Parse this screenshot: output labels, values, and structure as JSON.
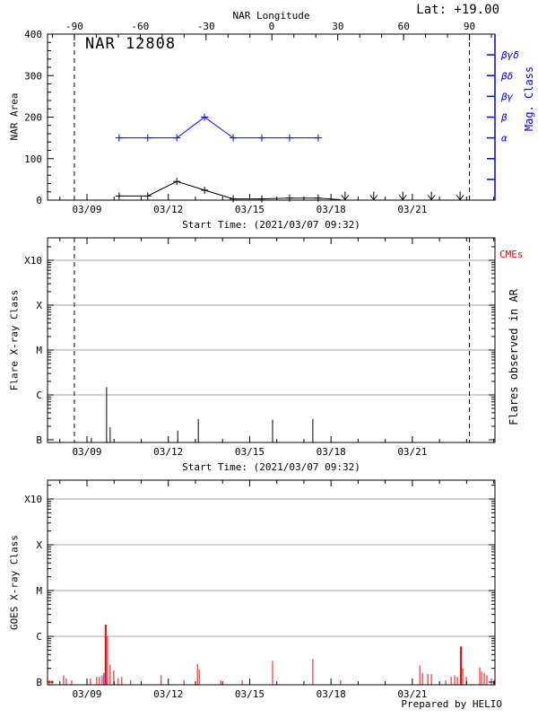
{
  "figure": {
    "title": "NAR 12808",
    "latitude": "Lat: +19.00",
    "prepared_by": "Prepared by HELIO",
    "colors": {
      "background": "#ffffff",
      "axis_black": "#000000",
      "accent_blue": "#0000ff",
      "accent_red": "#ff0000",
      "grid_gray": "#a6a6a6"
    }
  },
  "chart_data": [
    {
      "id": "nar-area",
      "type": "line",
      "title": "NAR 12808",
      "ylabel": "NAR Area",
      "ylim": [
        0,
        400
      ],
      "y_ticks": [
        "0",
        "100",
        "200",
        "300",
        "400"
      ],
      "top_axis": {
        "title": "NAR Longitude",
        "tick_labels": [
          "-90",
          "-60",
          "-30",
          "0",
          "30",
          "60",
          "90"
        ]
      },
      "x_tick_labels": [
        "03/09",
        "03/12",
        "03/15",
        "03/18",
        "03/21"
      ],
      "x_note": "Start Time: (2021/03/07 09:32)",
      "right_axis": {
        "title": "Mag. Class",
        "labels": [
          "α",
          "β",
          "βγ",
          "βδ",
          "βγδ"
        ],
        "values": [
          150,
          200,
          250,
          300,
          350
        ],
        "extra_ticks": [
          50,
          100
        ]
      },
      "dashed_x": [
        0.06,
        0.943
      ],
      "series": [
        {
          "name": "NAR Area",
          "color": "#000000",
          "marker": "plus",
          "dates": [
            "03/10",
            "03/11",
            "03/12",
            "03/13",
            "03/14",
            "03/15",
            "03/16",
            "03/17"
          ],
          "x": [
            0.16,
            0.224,
            0.289,
            0.351,
            0.415,
            0.479,
            0.541,
            0.605
          ],
          "y": [
            10,
            10,
            45,
            24,
            3,
            3,
            5,
            5
          ],
          "tail_x": 0.655
        },
        {
          "name": "Magnetic Class",
          "color": "#0000ff",
          "marker": "plus",
          "dates": [
            "03/10",
            "03/11",
            "03/12",
            "03/13",
            "03/14",
            "03/15",
            "03/16",
            "03/17"
          ],
          "x": [
            0.16,
            0.224,
            0.289,
            0.351,
            0.415,
            0.479,
            0.541,
            0.605
          ],
          "y": [
            150,
            150,
            150,
            200,
            150,
            150,
            150,
            150
          ],
          "classes": [
            "α",
            "α",
            "α",
            "β",
            "α",
            "α",
            "α",
            "α"
          ]
        }
      ],
      "limit_arrows": {
        "symbol": "down-arrow",
        "dates": [
          "03/18",
          "03/19",
          "03/20",
          "03/21",
          "03/22"
        ],
        "x": [
          0.665,
          0.729,
          0.794,
          0.858,
          0.922
        ],
        "y": 0
      }
    },
    {
      "id": "flares-in-ar",
      "type": "spikes",
      "ylabel": "Flare X-ray Class",
      "right_title": "Flares observed in AR",
      "corner_label": "CMEs",
      "y_tick_labels": [
        "B",
        "C",
        "M",
        "X",
        "X10"
      ],
      "x_tick_labels": [
        "03/09",
        "03/12",
        "03/15",
        "03/18",
        "03/21"
      ],
      "x_note": "Start Time: (2021/03/07 09:32)",
      "dashed_x": [
        0.06,
        0.943
      ],
      "color": "#000000",
      "events": [
        {
          "x": 0.098,
          "class": "B1.1"
        },
        {
          "x": 0.132,
          "class": "C1.5"
        },
        {
          "x": 0.14,
          "class": "B1.9"
        },
        {
          "x": 0.291,
          "class": "B1.6"
        },
        {
          "x": 0.337,
          "class": "B2.9"
        },
        {
          "x": 0.503,
          "class": "B2.8"
        },
        {
          "x": 0.593,
          "class": "B2.9"
        }
      ]
    },
    {
      "id": "goes",
      "type": "spikes",
      "ylabel": "GOES X-ray Class",
      "y_tick_labels": [
        "B",
        "C",
        "M",
        "X",
        "X10"
      ],
      "x_tick_labels": [
        "03/09",
        "03/12",
        "03/15",
        "03/18",
        "03/21"
      ],
      "footer": "Prepared by HELIO",
      "color": "#ff0000",
      "events": [
        {
          "x": 0.004,
          "class": "B1.1"
        },
        {
          "x": 0.01,
          "class": "B1.1"
        },
        {
          "x": 0.036,
          "class": "B1.4"
        },
        {
          "x": 0.042,
          "class": "B1.2"
        },
        {
          "x": 0.054,
          "class": "B1.1"
        },
        {
          "x": 0.096,
          "class": "B1.2"
        },
        {
          "x": 0.11,
          "class": "B1.3"
        },
        {
          "x": 0.116,
          "class": "B1.3"
        },
        {
          "x": 0.122,
          "class": "B1.4"
        },
        {
          "x": 0.126,
          "class": "B1.6",
          "color": "#0000ff"
        },
        {
          "x": 0.13,
          "class": "C1.8",
          "wide": true
        },
        {
          "x": 0.134,
          "class": "C1.0"
        },
        {
          "x": 0.14,
          "class": "B2.4"
        },
        {
          "x": 0.148,
          "class": "B1.8"
        },
        {
          "x": 0.158,
          "class": "B1.2"
        },
        {
          "x": 0.166,
          "class": "B1.3"
        },
        {
          "x": 0.186,
          "class": "B1.1"
        },
        {
          "x": 0.254,
          "class": "B1.4"
        },
        {
          "x": 0.305,
          "class": "B1.1"
        },
        {
          "x": 0.335,
          "class": "B2.5"
        },
        {
          "x": 0.339,
          "class": "B1.9"
        },
        {
          "x": 0.387,
          "class": "B1.1"
        },
        {
          "x": 0.435,
          "class": "B1.1"
        },
        {
          "x": 0.503,
          "class": "B2.9"
        },
        {
          "x": 0.593,
          "class": "B3.2"
        },
        {
          "x": 0.655,
          "class": "B1.1"
        },
        {
          "x": 0.832,
          "class": "B2.3"
        },
        {
          "x": 0.838,
          "class": "B1.6"
        },
        {
          "x": 0.85,
          "class": "B1.5"
        },
        {
          "x": 0.858,
          "class": "B1.5"
        },
        {
          "x": 0.89,
          "class": "B1.1"
        },
        {
          "x": 0.902,
          "class": "B1.3"
        },
        {
          "x": 0.91,
          "class": "B1.4"
        },
        {
          "x": 0.916,
          "class": "B1.3"
        },
        {
          "x": 0.924,
          "class": "B6.0",
          "wide": true
        },
        {
          "x": 0.928,
          "class": "B2.0"
        },
        {
          "x": 0.936,
          "class": "B1.3"
        },
        {
          "x": 0.966,
          "class": "B2.1"
        },
        {
          "x": 0.97,
          "class": "B1.7"
        },
        {
          "x": 0.976,
          "class": "B1.6"
        },
        {
          "x": 0.982,
          "class": "B1.4"
        },
        {
          "x": 0.992,
          "class": "B1.2"
        },
        {
          "x": 0.998,
          "class": "B1.1"
        }
      ]
    }
  ]
}
